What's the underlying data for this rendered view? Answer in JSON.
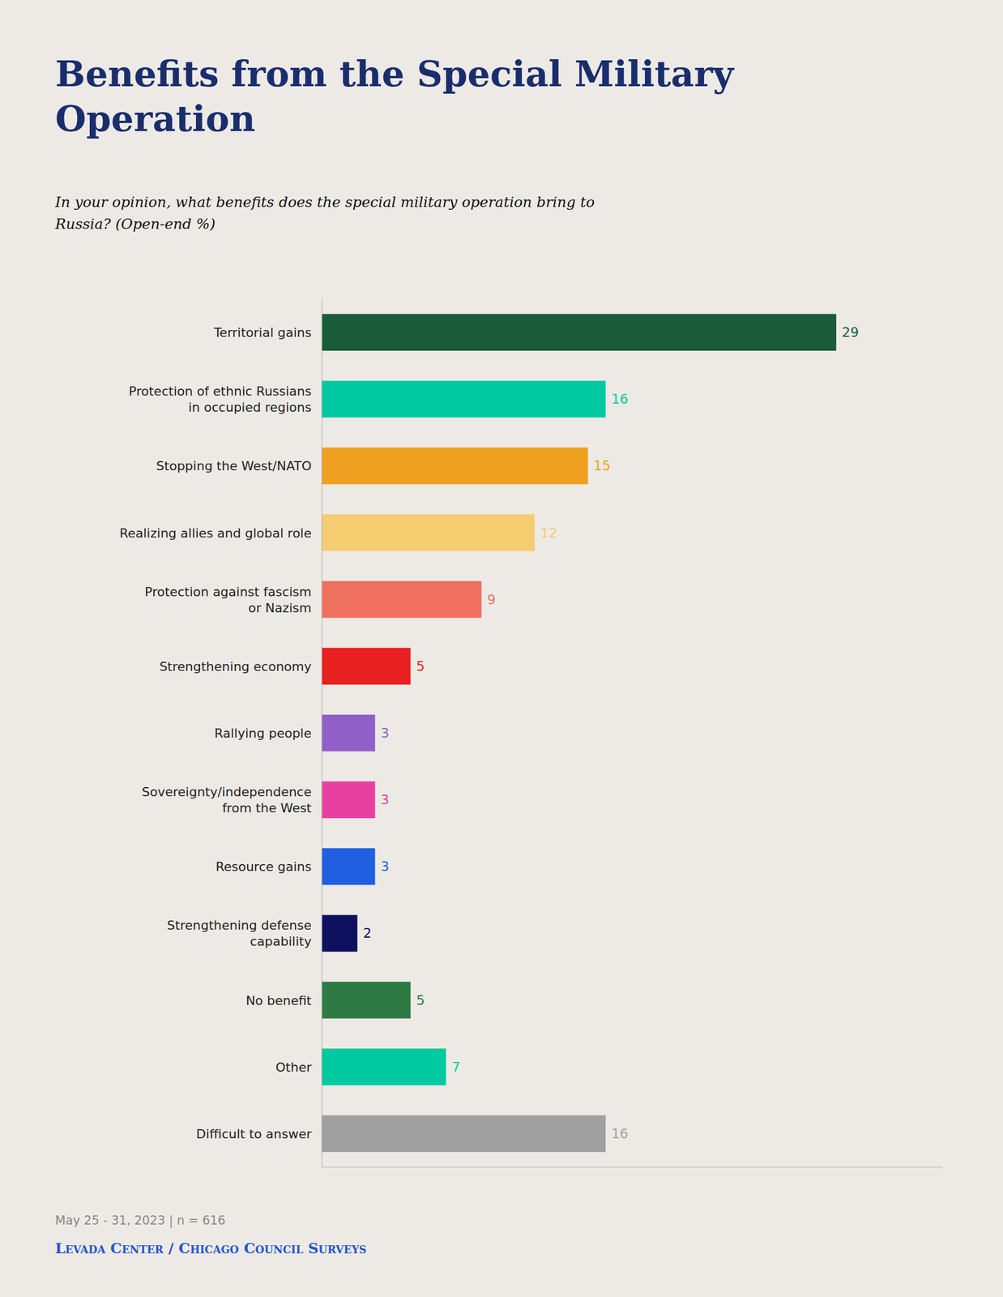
{
  "chart_data": {
    "type": "bar",
    "orientation": "horizontal",
    "title": "Benefits from the Special Military\nOperation",
    "subtitle": "In your opinion, what benefits does the special military operation bring to\nRussia? (Open-end %)",
    "annotations": [
      "May 25 - 31, 2023 | n = 616",
      "Levada Center / Chicago Council Surveys"
    ],
    "categories": [
      "Territorial gains",
      "Protection of ethnic Russians\nin occupied regions",
      "Stopping the West/NATO",
      "Realizing allies and global role",
      "Protection against fascism\nor Nazism",
      "Strengthening economy",
      "Rallying people",
      "Sovereignty/independence\nfrom the West",
      "Resource gains",
      "Strengthening defense\ncapability",
      "No benefit",
      "Other",
      "Difficult to answer"
    ],
    "values": [
      29,
      16,
      15,
      12,
      9,
      5,
      3,
      3,
      3,
      2,
      5,
      7,
      16
    ],
    "colors": [
      "#1a5c3a",
      "#00c9a0",
      "#f0a020",
      "#f5cc70",
      "#f07060",
      "#e82020",
      "#9060c8",
      "#e840a0",
      "#2060e0",
      "#101060",
      "#2d7a45",
      "#00c9a0",
      "#a0a0a0"
    ],
    "xlim": [
      0,
      35
    ],
    "grid": false,
    "data_labels": true,
    "tick_labels": "y"
  }
}
